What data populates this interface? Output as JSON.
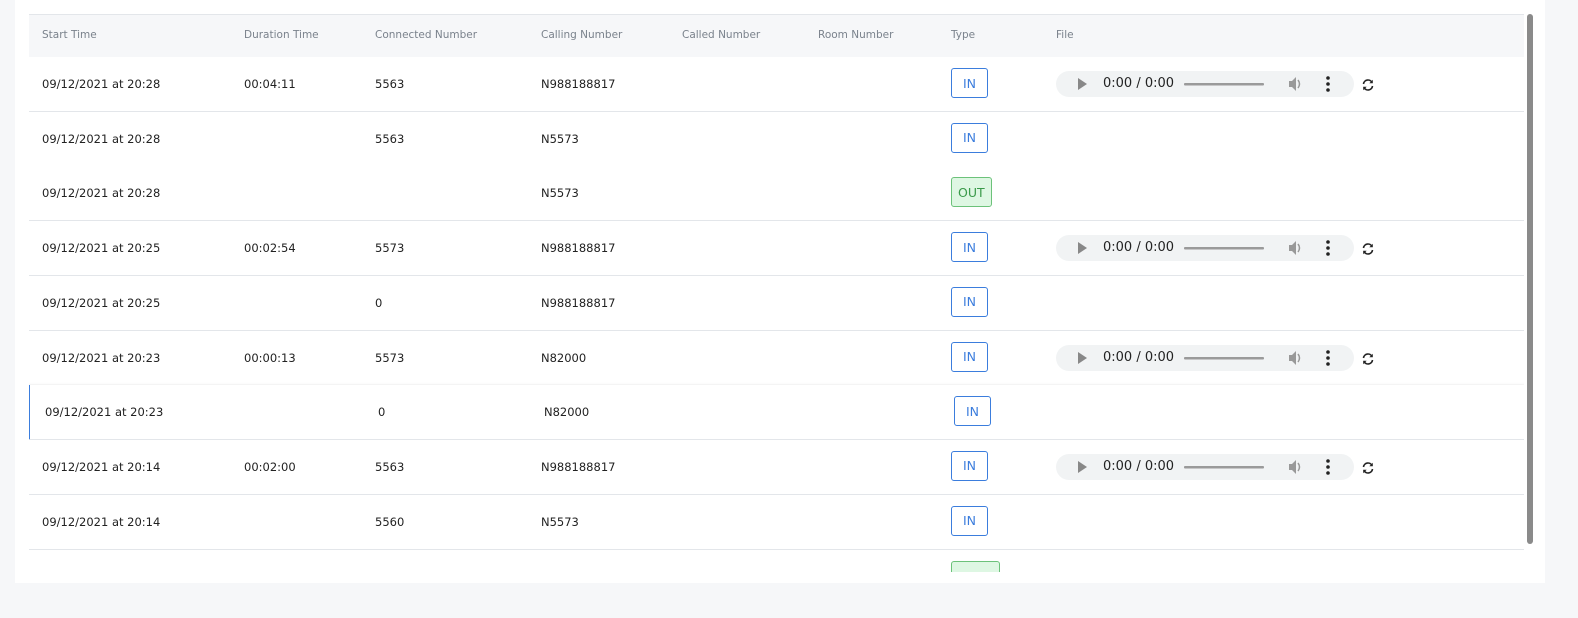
{
  "table": {
    "columns": [
      "Start Time",
      "Duration Time",
      "Connected Number",
      "Calling Number",
      "Called Number",
      "Room Number",
      "Type",
      "File"
    ],
    "rows": [
      [
        "09/12/2021 at 20:28",
        "00:04:11",
        "5563",
        "N988188817",
        null,
        null,
        "IN",
        "0:00 / 0:00"
      ],
      [
        "09/12/2021 at 20:28",
        null,
        "5563",
        "N5573",
        null,
        null,
        "IN",
        null
      ],
      [
        "09/12/2021 at 20:28",
        null,
        null,
        "N5573",
        null,
        null,
        "OUT",
        null
      ],
      [
        "09/12/2021 at 20:25",
        "00:02:54",
        "5573",
        "N988188817",
        null,
        null,
        "IN",
        "0:00 / 0:00"
      ],
      [
        "09/12/2021 at 20:25",
        null,
        "0",
        "N988188817",
        null,
        null,
        "IN",
        null
      ],
      [
        "09/12/2021 at 20:23",
        "00:00:13",
        "5573",
        "N82000",
        null,
        null,
        "IN",
        "0:00 / 0:00"
      ],
      [
        "09/12/2021 at 20:23",
        null,
        "0",
        "N82000",
        null,
        null,
        "IN",
        null
      ],
      [
        "09/12/2021 at 20:14",
        "00:02:00",
        "5563",
        "N988188817",
        null,
        null,
        "IN",
        "0:00 / 0:00"
      ],
      [
        "09/12/2021 at 20:14",
        null,
        "5560",
        "N5573",
        null,
        null,
        "IN",
        null
      ]
    ]
  }
}
